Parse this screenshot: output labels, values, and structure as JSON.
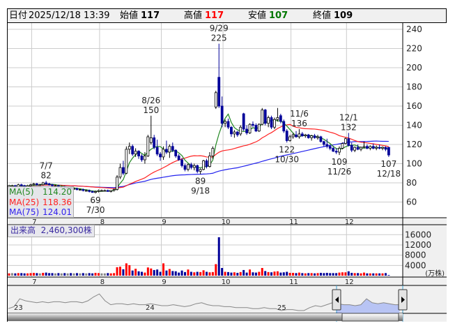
{
  "header": {
    "date_label": "日付",
    "datetime": "2025/12/18 13:39",
    "open_label": "始値",
    "open": "117",
    "high_label": "高値",
    "high": "117",
    "low_label": "安値",
    "low": "107",
    "close_label": "終値",
    "close": "109"
  },
  "legend": {
    "ma5_label": "MA(5)",
    "ma5_value": "114.20",
    "ma25_label": "MA(25)",
    "ma25_value": "118.36",
    "ma75_label": "MA(75)",
    "ma75_value": "124.01"
  },
  "volume": {
    "label": "出来高",
    "value": "2,460,300株",
    "unit": "(万株)"
  },
  "colors": {
    "up_volume": "#ff0000",
    "down_volume": "#000099",
    "flat_volume": "#888888",
    "candle_down": "#000099",
    "candle_up": "#ffffff",
    "ma5": "#228822",
    "ma25": "#ff2222",
    "ma75": "#2222ee",
    "high_text": "#ff0000",
    "low_text": "#007700",
    "nav_selection": "#b8c4f4"
  },
  "chart_data": {
    "type": "candlestick",
    "price_axis": {
      "ticks": [
        240,
        220,
        200,
        180,
        160,
        140,
        120,
        100,
        80,
        60
      ],
      "range": [
        53,
        247
      ],
      "grid": true,
      "position": "right"
    },
    "volume_axis": {
      "ticks": [
        16000,
        12000,
        8000,
        4000
      ],
      "unit": "万株"
    },
    "month_labels": [
      {
        "label": "7",
        "index": 8
      },
      {
        "label": "8",
        "index": 30
      },
      {
        "label": "9",
        "index": 50
      },
      {
        "label": "10",
        "index": 70
      },
      {
        "label": "11",
        "index": 92
      },
      {
        "label": "12",
        "index": 110
      }
    ],
    "candles_ohlcv": [
      [
        76,
        78,
        75,
        77,
        900
      ],
      [
        77,
        78,
        76,
        77,
        1000
      ],
      [
        77,
        78,
        75,
        76,
        900
      ],
      [
        76,
        79,
        76,
        78,
        1000
      ],
      [
        78,
        79,
        76,
        77,
        1000
      ],
      [
        77,
        78,
        75,
        76,
        900
      ],
      [
        76,
        78,
        76,
        77,
        900
      ],
      [
        77,
        79,
        76,
        78,
        1000
      ],
      [
        78,
        80,
        77,
        79,
        1100
      ],
      [
        79,
        80,
        77,
        78,
        1000
      ],
      [
        78,
        79,
        77,
        78,
        900
      ],
      [
        78,
        81,
        77,
        80,
        1100
      ],
      [
        80,
        82,
        78,
        79,
        1200
      ],
      [
        79,
        80,
        77,
        78,
        1000
      ],
      [
        78,
        79,
        76,
        77,
        1000
      ],
      [
        77,
        78,
        76,
        77,
        900
      ],
      [
        77,
        78,
        75,
        76,
        1000
      ],
      [
        76,
        77,
        75,
        76,
        900
      ],
      [
        76,
        77,
        74,
        75,
        1000
      ],
      [
        75,
        76,
        74,
        75,
        900
      ],
      [
        75,
        76,
        73,
        74,
        1000
      ],
      [
        74,
        75,
        73,
        74,
        900
      ],
      [
        74,
        75,
        72,
        73,
        1000
      ],
      [
        73,
        74,
        72,
        73,
        900
      ],
      [
        73,
        74,
        71,
        72,
        1000
      ],
      [
        72,
        73,
        71,
        72,
        900
      ],
      [
        72,
        73,
        70,
        71,
        1000
      ],
      [
        71,
        72,
        70,
        70,
        900
      ],
      [
        70,
        72,
        69,
        71,
        1100
      ],
      [
        71,
        73,
        70,
        72,
        1000
      ],
      [
        72,
        73,
        71,
        72,
        900
      ],
      [
        72,
        73,
        71,
        72,
        900
      ],
      [
        72,
        73,
        71,
        71,
        1000
      ],
      [
        71,
        72,
        70,
        72,
        900
      ],
      [
        72,
        74,
        71,
        73,
        1000
      ],
      [
        73,
        88,
        72,
        86,
        3300
      ],
      [
        86,
        100,
        84,
        96,
        3500
      ],
      [
        96,
        103,
        88,
        90,
        2500
      ],
      [
        90,
        118,
        89,
        115,
        4800
      ],
      [
        115,
        122,
        110,
        118,
        4100
      ],
      [
        118,
        120,
        108,
        110,
        2000
      ],
      [
        110,
        116,
        107,
        113,
        2700
      ],
      [
        113,
        114,
        105,
        108,
        1700
      ],
      [
        108,
        110,
        102,
        104,
        1500
      ],
      [
        104,
        112,
        100,
        108,
        1200
      ],
      [
        108,
        130,
        107,
        128,
        3200
      ],
      [
        122,
        150,
        120,
        127,
        2800
      ],
      [
        127,
        130,
        115,
        117,
        2200
      ],
      [
        117,
        125,
        108,
        110,
        2400
      ],
      [
        110,
        112,
        103,
        107,
        1500
      ],
      [
        107,
        118,
        104,
        115,
        4800
      ],
      [
        115,
        124,
        110,
        112,
        2000
      ],
      [
        112,
        120,
        106,
        118,
        2600
      ],
      [
        118,
        122,
        112,
        114,
        1800
      ],
      [
        114,
        115,
        106,
        108,
        1700
      ],
      [
        108,
        110,
        103,
        104,
        1200
      ],
      [
        104,
        106,
        96,
        98,
        2000
      ],
      [
        98,
        100,
        92,
        94,
        1400
      ],
      [
        94,
        100,
        92,
        99,
        2400
      ],
      [
        99,
        101,
        94,
        96,
        1500
      ],
      [
        96,
        100,
        93,
        98,
        1300
      ],
      [
        98,
        99,
        90,
        92,
        1500
      ],
      [
        92,
        95,
        89,
        94,
        1400
      ],
      [
        94,
        104,
        93,
        103,
        2100
      ],
      [
        103,
        105,
        95,
        97,
        1500
      ],
      [
        97,
        112,
        96,
        108,
        1300
      ],
      [
        108,
        118,
        105,
        116,
        1400
      ],
      [
        159,
        176,
        157,
        174,
        4500
      ],
      [
        190,
        225,
        158,
        160,
        15000
      ],
      [
        160,
        170,
        138,
        142,
        3000
      ],
      [
        142,
        146,
        138,
        144,
        1500
      ],
      [
        144,
        147,
        136,
        138,
        1400
      ],
      [
        138,
        139,
        128,
        131,
        1200
      ],
      [
        131,
        135,
        127,
        133,
        1300
      ],
      [
        133,
        134,
        128,
        130,
        1100
      ],
      [
        131,
        140,
        129,
        138,
        1400
      ],
      [
        152,
        153,
        134,
        136,
        2200
      ],
      [
        136,
        140,
        130,
        132,
        1200
      ],
      [
        132,
        142,
        131,
        141,
        2400
      ],
      [
        141,
        144,
        138,
        140,
        1300
      ],
      [
        140,
        142,
        133,
        134,
        1200
      ],
      [
        134,
        142,
        133,
        141,
        1500
      ],
      [
        141,
        158,
        140,
        156,
        3000
      ],
      [
        156,
        157,
        140,
        142,
        1800
      ],
      [
        142,
        150,
        138,
        148,
        1400
      ],
      [
        148,
        150,
        136,
        138,
        1300
      ],
      [
        138,
        148,
        136,
        146,
        1600
      ],
      [
        146,
        158,
        144,
        148,
        1700
      ],
      [
        150,
        152,
        142,
        144,
        1200
      ],
      [
        144,
        146,
        132,
        134,
        1300
      ],
      [
        134,
        136,
        122,
        124,
        1500
      ],
      [
        124,
        130,
        123,
        128,
        1100
      ],
      [
        128,
        132,
        126,
        130,
        1100
      ],
      [
        130,
        134,
        127,
        128,
        1000
      ],
      [
        128,
        136,
        126,
        131,
        1200
      ],
      [
        131,
        133,
        128,
        129,
        1000
      ],
      [
        129,
        131,
        127,
        130,
        900
      ],
      [
        130,
        131,
        126,
        127,
        1000
      ],
      [
        127,
        130,
        124,
        129,
        1000
      ],
      [
        129,
        131,
        126,
        127,
        900
      ],
      [
        127,
        130,
        125,
        128,
        1000
      ],
      [
        128,
        129,
        122,
        123,
        1100
      ],
      [
        123,
        124,
        118,
        120,
        1000
      ],
      [
        120,
        126,
        116,
        118,
        1100
      ],
      [
        118,
        120,
        114,
        116,
        1000
      ],
      [
        116,
        118,
        112,
        113,
        1000
      ],
      [
        113,
        116,
        110,
        112,
        1000
      ],
      [
        112,
        118,
        109,
        116,
        1200
      ],
      [
        116,
        122,
        115,
        121,
        1300
      ],
      [
        121,
        127,
        120,
        126,
        1300
      ],
      [
        126,
        132,
        118,
        119,
        1700
      ],
      [
        119,
        122,
        112,
        114,
        1100
      ],
      [
        114,
        118,
        112,
        117,
        1000
      ],
      [
        117,
        120,
        114,
        115,
        1000
      ],
      [
        115,
        118,
        113,
        117,
        900
      ],
      [
        117,
        123,
        116,
        118,
        1200
      ],
      [
        118,
        120,
        115,
        116,
        900
      ],
      [
        116,
        119,
        114,
        118,
        900
      ],
      [
        118,
        121,
        115,
        116,
        900
      ],
      [
        116,
        119,
        114,
        117,
        900
      ],
      [
        117,
        120,
        115,
        116,
        900
      ],
      [
        116,
        118,
        114,
        117,
        900
      ],
      [
        117,
        118,
        113,
        115,
        1000
      ],
      [
        117,
        117,
        107,
        109,
        246
      ]
    ],
    "annotations": [
      {
        "index": 12,
        "value": 82,
        "date": "7/7",
        "price": "82",
        "where": "above"
      },
      {
        "index": 28,
        "value": 69,
        "date": "7/30",
        "price": "69",
        "where": "below"
      },
      {
        "index": 46,
        "value": 150,
        "date": "8/26",
        "price": "150",
        "where": "above"
      },
      {
        "index": 62,
        "value": 89,
        "date": "9/18",
        "price": "89",
        "where": "below"
      },
      {
        "index": 68,
        "value": 225,
        "date": "9/29",
        "price": "225",
        "where": "above"
      },
      {
        "index": 90,
        "value": 122,
        "date": "10/30",
        "price": "122",
        "where": "below"
      },
      {
        "index": 94,
        "value": 136,
        "date": "11/6",
        "price": "136",
        "where": "above"
      },
      {
        "index": 107,
        "value": 109,
        "date": "11/26",
        "price": "109",
        "where": "below"
      },
      {
        "index": 110,
        "value": 132,
        "date": "12/1",
        "price": "132",
        "where": "above"
      },
      {
        "index": 123,
        "value": 107,
        "date": "12/18",
        "price": "107",
        "where": "below"
      }
    ],
    "navigator": {
      "year_labels": [
        "23",
        "24",
        "25"
      ],
      "history": [
        62,
        64,
        72,
        70,
        69,
        68,
        69,
        68,
        69,
        69,
        68,
        69,
        69,
        68,
        70,
        74,
        77,
        70,
        66,
        67,
        67,
        66,
        67,
        66,
        66,
        67,
        66,
        65,
        65,
        66,
        65,
        64,
        65,
        67,
        68,
        66,
        65,
        65,
        64,
        64,
        63,
        63,
        63,
        62,
        62,
        63,
        62,
        62,
        60,
        61,
        61,
        60,
        60,
        63,
        65,
        64,
        66,
        68,
        67,
        66,
        66,
        65,
        66,
        72,
        68,
        67,
        68,
        67,
        66,
        66
      ]
    }
  }
}
